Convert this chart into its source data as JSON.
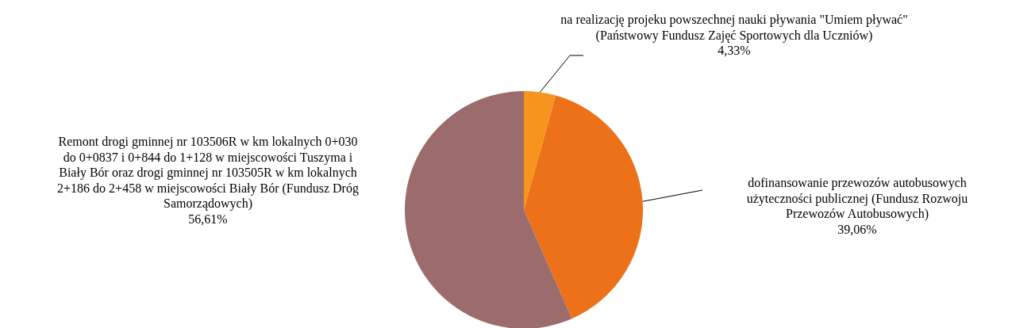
{
  "chart_data": {
    "type": "pie",
    "categories": [
      "na realizację projeku powszechnej nauki pływania \"Umiem pływać\" (Państwowy Fundusz Zajęć Sportowych dla Uczniów)",
      "dofinansowanie przewozów autobusowych użyteczności publicznej (Fundusz Rozwoju Przewozów Autobusowych)",
      "Remont drogi gminnej nr 103506R w km lokalnych 0+030 do 0+0837 i 0+844 do 1+128 w miejscowości Tuszyma i Biały Bór oraz drogi gminnej nr 103505R w km lokalnych 2+186 do 2+458 w miejscowości Biały Bór (Fundusz Dróg Samorządowych)"
    ],
    "values": [
      4.33,
      39.06,
      56.61
    ],
    "value_labels": [
      "4,33%",
      "39,06%",
      "56,61%"
    ],
    "colors": [
      "#f7941d",
      "#ec7118",
      "#9c6b6b"
    ]
  }
}
